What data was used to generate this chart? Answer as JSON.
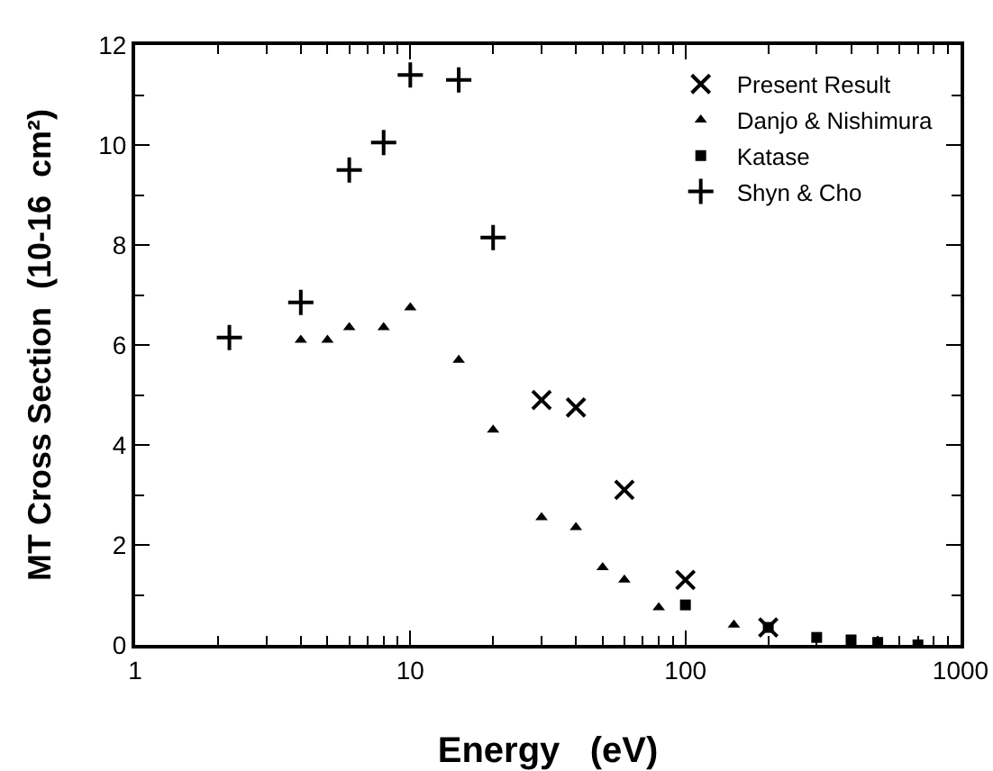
{
  "chart_data": {
    "type": "scatter",
    "xlabel": "Energy   (eV)",
    "ylabel": "MT Cross Section  (10-16  cm²)",
    "log": "x",
    "xlim": [
      1,
      1000
    ],
    "xticks": [
      1,
      10,
      100,
      1000
    ],
    "ylim": [
      0,
      12
    ],
    "yticks": [
      0,
      2,
      4,
      6,
      8,
      10,
      12
    ],
    "grid": false,
    "legend": "top right",
    "series": [
      {
        "name": "Present Result",
        "color": "#000000",
        "marker": "x",
        "x": [
          30,
          40,
          60,
          100,
          200
        ],
        "values": [
          4.9,
          4.75,
          3.1,
          1.3,
          0.35
        ]
      },
      {
        "name": "Danjo & Nishimura",
        "color": "#000000",
        "marker": "triangle",
        "x": [
          4,
          5,
          6,
          8,
          10,
          15,
          20,
          30,
          40,
          50,
          60,
          80,
          150
        ],
        "values": [
          6.1,
          6.1,
          6.35,
          6.35,
          6.75,
          5.7,
          4.3,
          2.55,
          2.35,
          1.55,
          1.3,
          0.75,
          0.4
        ]
      },
      {
        "name": "Katase",
        "color": "#000000",
        "marker": "square",
        "x": [
          100,
          200,
          300,
          400,
          500,
          700
        ],
        "values": [
          0.8,
          0.35,
          0.15,
          0.1,
          0.05,
          0.0
        ]
      },
      {
        "name": "Shyn & Cho",
        "color": "#000000",
        "marker": "cross",
        "x": [
          2.2,
          4,
          6,
          8,
          10,
          15,
          20
        ],
        "values": [
          6.15,
          6.85,
          9.5,
          10.05,
          11.4,
          11.3,
          8.15
        ]
      }
    ]
  }
}
